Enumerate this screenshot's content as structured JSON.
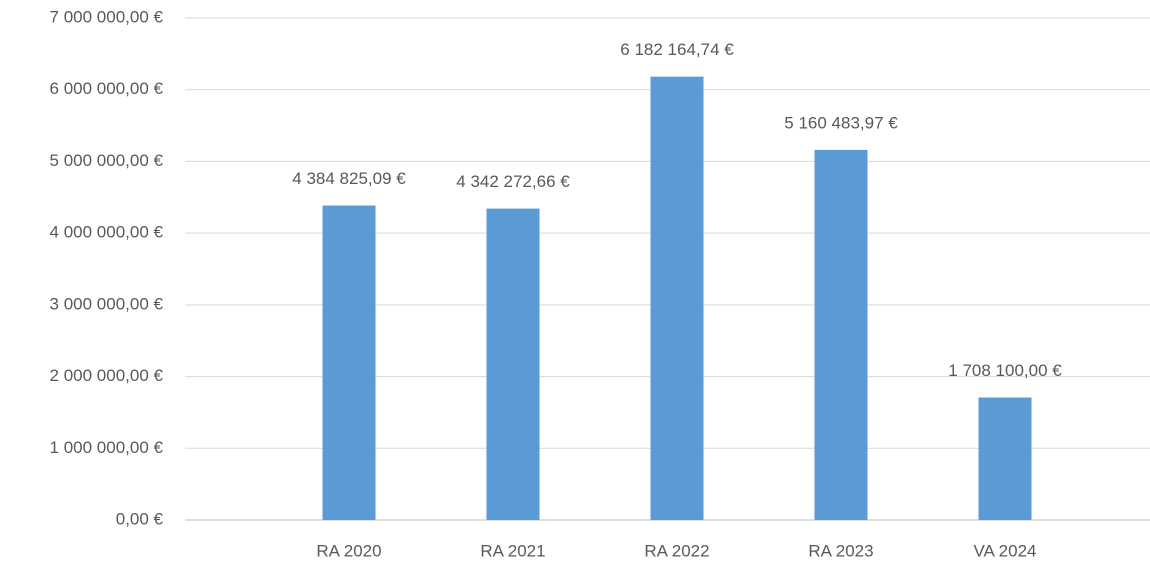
{
  "chart_data": {
    "type": "bar",
    "categories": [
      "RA 2020",
      "RA 2021",
      "RA 2022",
      "RA 2023",
      "VA 2024"
    ],
    "values": [
      4384825.09,
      4342272.66,
      6182164.74,
      5160483.97,
      1708100.0
    ],
    "value_labels": [
      "4 384 825,09 €",
      "4 342 272,66 €",
      "6 182 164,74 €",
      "5 160 483,97 €",
      "1 708 100,00 €"
    ],
    "color": "#5b9bd5",
    "ylim": [
      0,
      7000000
    ],
    "yticks": [
      {
        "value": 0,
        "label": "0,00 €"
      },
      {
        "value": 1000000,
        "label": "1 000 000,00 €"
      },
      {
        "value": 2000000,
        "label": "2 000 000,00 €"
      },
      {
        "value": 3000000,
        "label": "3 000 000,00 €"
      },
      {
        "value": 4000000,
        "label": "4 000 000,00 €"
      },
      {
        "value": 5000000,
        "label": "5 000 000,00 €"
      },
      {
        "value": 6000000,
        "label": "6 000 000,00 €"
      },
      {
        "value": 7000000,
        "label": "7 000 000,00 €"
      }
    ],
    "grid": true
  }
}
